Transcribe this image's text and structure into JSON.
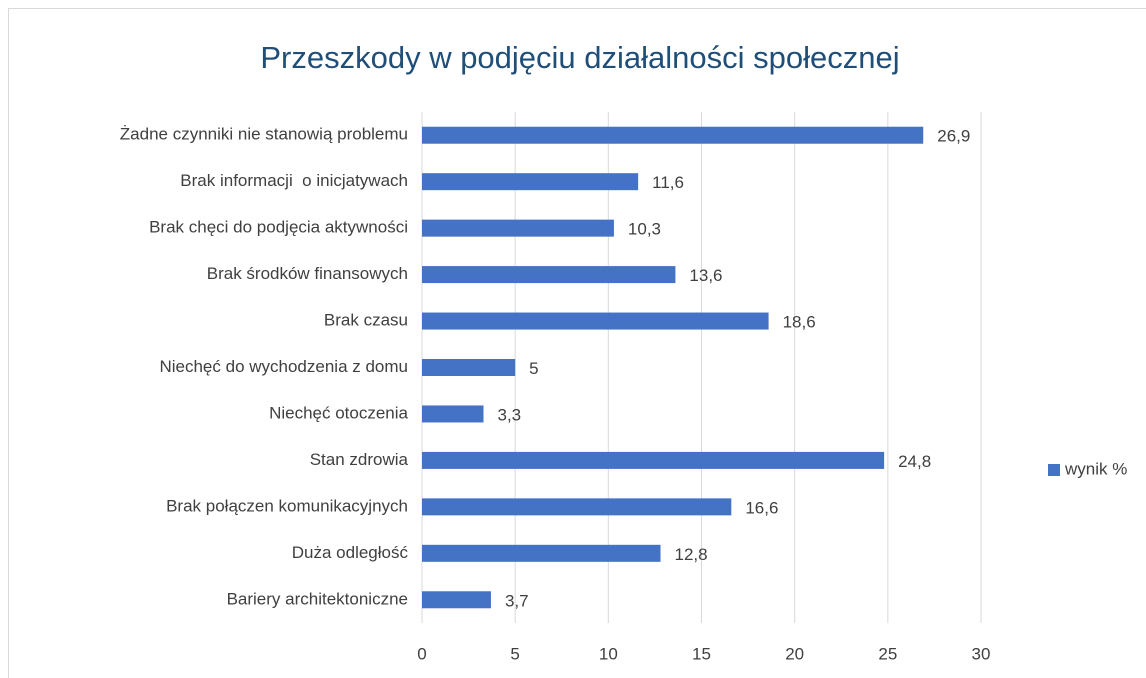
{
  "chart_data": {
    "type": "bar",
    "orientation": "horizontal",
    "title": "Przeszkody w podjęciu działalności społecznej",
    "categories": [
      "Żadne czynniki nie stanowią problemu",
      "Brak informacji  o inicjatywach",
      "Brak chęci do podjęcia aktywności",
      "Brak środków finansowych",
      "Brak czasu",
      "Niechęć do wychodzenia z domu",
      "Niechęć otoczenia",
      "Stan zdrowia",
      "Brak połączen komunikacyjnych",
      "Duża odległość",
      "Bariery architektoniczne"
    ],
    "series": [
      {
        "name": "wynik %",
        "color": "#4472c4",
        "values": [
          26.9,
          11.6,
          10.3,
          13.6,
          18.6,
          5,
          3.3,
          24.8,
          16.6,
          12.8,
          3.7
        ],
        "value_labels": [
          "26,9",
          "11,6",
          "10,3",
          "13,6",
          "18,6",
          "5",
          "3,3",
          "24,8",
          "16,6",
          "12,8",
          "3,7"
        ]
      }
    ],
    "xlim": [
      0,
      30
    ],
    "xticks": [
      0,
      5,
      10,
      15,
      20,
      25,
      30
    ],
    "grid": true,
    "legend": "right"
  }
}
